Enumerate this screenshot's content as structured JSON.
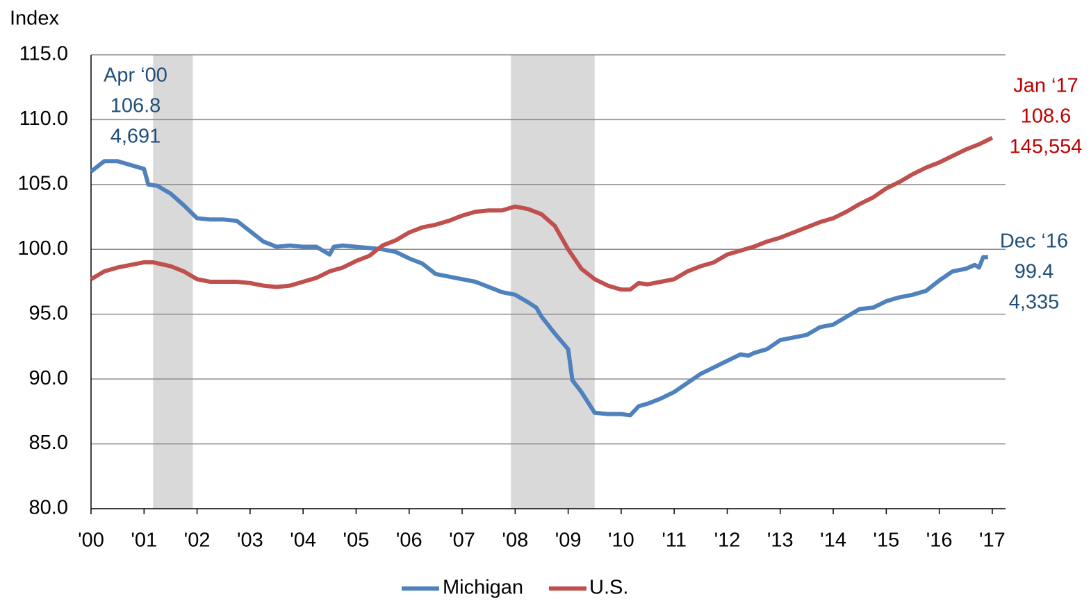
{
  "chart_data": {
    "type": "line",
    "y_axis_label": "Index",
    "xlim": [
      2000,
      2017.25
    ],
    "xticks": [
      {
        "value": 2000,
        "label": "'00"
      },
      {
        "value": 2001,
        "label": "'01"
      },
      {
        "value": 2002,
        "label": "'02"
      },
      {
        "value": 2003,
        "label": "'03"
      },
      {
        "value": 2004,
        "label": "'04"
      },
      {
        "value": 2005,
        "label": "'05"
      },
      {
        "value": 2006,
        "label": "'06"
      },
      {
        "value": 2007,
        "label": "'07"
      },
      {
        "value": 2008,
        "label": "'08"
      },
      {
        "value": 2009,
        "label": "'09"
      },
      {
        "value": 2010,
        "label": "'10"
      },
      {
        "value": 2011,
        "label": "'11"
      },
      {
        "value": 2012,
        "label": "'12"
      },
      {
        "value": 2013,
        "label": "'13"
      },
      {
        "value": 2014,
        "label": "'14"
      },
      {
        "value": 2015,
        "label": "'15"
      },
      {
        "value": 2016,
        "label": "'16"
      },
      {
        "value": 2017,
        "label": "'17"
      }
    ],
    "ylim": [
      80,
      115
    ],
    "yticks": [
      {
        "value": 80,
        "label": "80.0"
      },
      {
        "value": 85,
        "label": "85.0"
      },
      {
        "value": 90,
        "label": "90.0"
      },
      {
        "value": 95,
        "label": "95.0"
      },
      {
        "value": 100,
        "label": "100.0"
      },
      {
        "value": 105,
        "label": "105.0"
      },
      {
        "value": 110,
        "label": "110.0"
      },
      {
        "value": 115,
        "label": "115.0"
      }
    ],
    "grid": true,
    "recessions": [
      [
        2001.17,
        2001.92
      ],
      [
        2007.92,
        2009.5
      ]
    ],
    "recession_color": "#d9d9d9",
    "legend": "bottom",
    "series": [
      {
        "name": "Michigan",
        "color": "#4f81bd",
        "x": [
          2000,
          2000.25,
          2000.5,
          2000.75,
          2001,
          2001.08,
          2001.25,
          2001.5,
          2001.75,
          2002,
          2002.25,
          2002.5,
          2002.75,
          2003,
          2003.25,
          2003.5,
          2003.75,
          2004,
          2004.25,
          2004.5,
          2004.58,
          2004.75,
          2005,
          2005.25,
          2005.5,
          2005.75,
          2006,
          2006.25,
          2006.5,
          2006.75,
          2007,
          2007.25,
          2007.5,
          2007.75,
          2008,
          2008.25,
          2008.4,
          2008.5,
          2008.75,
          2009,
          2009.08,
          2009.25,
          2009.5,
          2009.75,
          2010,
          2010.17,
          2010.33,
          2010.5,
          2010.75,
          2011,
          2011.25,
          2011.5,
          2011.75,
          2012,
          2012.25,
          2012.4,
          2012.5,
          2012.75,
          2013,
          2013.25,
          2013.5,
          2013.75,
          2014,
          2014.25,
          2014.5,
          2014.75,
          2015,
          2015.25,
          2015.5,
          2015.75,
          2016,
          2016.25,
          2016.5,
          2016.67,
          2016.75,
          2016.83,
          2016.92
        ],
        "values": [
          106.0,
          106.8,
          106.8,
          106.5,
          106.2,
          105.0,
          104.9,
          104.3,
          103.4,
          102.4,
          102.3,
          102.3,
          102.2,
          101.4,
          100.6,
          100.2,
          100.3,
          100.2,
          100.2,
          99.6,
          100.2,
          100.3,
          100.2,
          100.1,
          100.0,
          99.8,
          99.3,
          98.9,
          98.1,
          97.9,
          97.7,
          97.5,
          97.1,
          96.7,
          96.5,
          95.9,
          95.5,
          94.8,
          93.5,
          92.3,
          89.9,
          89.0,
          87.4,
          87.3,
          87.3,
          87.2,
          87.9,
          88.1,
          88.5,
          89.0,
          89.7,
          90.4,
          90.9,
          91.4,
          91.9,
          91.8,
          92.0,
          92.3,
          93.0,
          93.2,
          93.4,
          94.0,
          94.2,
          94.8,
          95.4,
          95.5,
          96.0,
          96.3,
          96.5,
          96.8,
          97.6,
          98.3,
          98.5,
          98.8,
          98.6,
          99.4,
          99.4
        ]
      },
      {
        "name": "U.S.",
        "color": "#c0504d",
        "x": [
          2000,
          2000.25,
          2000.5,
          2000.75,
          2001,
          2001.17,
          2001.5,
          2001.75,
          2002,
          2002.25,
          2002.5,
          2002.75,
          2003,
          2003.25,
          2003.5,
          2003.75,
          2004,
          2004.25,
          2004.5,
          2004.75,
          2005,
          2005.25,
          2005.5,
          2005.75,
          2006,
          2006.25,
          2006.5,
          2006.75,
          2007,
          2007.25,
          2007.5,
          2007.75,
          2008,
          2008.25,
          2008.5,
          2008.75,
          2009,
          2009.25,
          2009.5,
          2009.75,
          2010,
          2010.17,
          2010.33,
          2010.5,
          2010.75,
          2011,
          2011.25,
          2011.5,
          2011.75,
          2012,
          2012.25,
          2012.5,
          2012.75,
          2013,
          2013.25,
          2013.5,
          2013.75,
          2014,
          2014.25,
          2014.5,
          2014.75,
          2015,
          2015.25,
          2015.5,
          2015.75,
          2016,
          2016.25,
          2016.5,
          2016.75,
          2017
        ],
        "values": [
          97.7,
          98.3,
          98.6,
          98.8,
          99.0,
          99.0,
          98.7,
          98.3,
          97.7,
          97.5,
          97.5,
          97.5,
          97.4,
          97.2,
          97.1,
          97.2,
          97.5,
          97.8,
          98.3,
          98.6,
          99.1,
          99.5,
          100.3,
          100.7,
          101.3,
          101.7,
          101.9,
          102.2,
          102.6,
          102.9,
          103.0,
          103.0,
          103.3,
          103.1,
          102.7,
          101.8,
          100.0,
          98.5,
          97.7,
          97.2,
          96.9,
          96.9,
          97.4,
          97.3,
          97.5,
          97.7,
          98.3,
          98.7,
          99.0,
          99.6,
          99.9,
          100.2,
          100.6,
          100.9,
          101.3,
          101.7,
          102.1,
          102.4,
          102.9,
          103.5,
          104.0,
          104.7,
          105.2,
          105.8,
          106.3,
          106.7,
          107.2,
          107.7,
          108.1,
          108.6
        ]
      }
    ],
    "annotations": [
      {
        "color": "#1f4e79",
        "lines": [
          "Apr ‘00",
          "106.8",
          "4,691"
        ]
      },
      {
        "color": "#c00000",
        "lines": [
          "Jan ‘17",
          "108.6",
          "145,554"
        ]
      },
      {
        "color": "#1f4e79",
        "lines": [
          "Dec ‘16",
          "99.4",
          "4,335"
        ]
      }
    ]
  }
}
